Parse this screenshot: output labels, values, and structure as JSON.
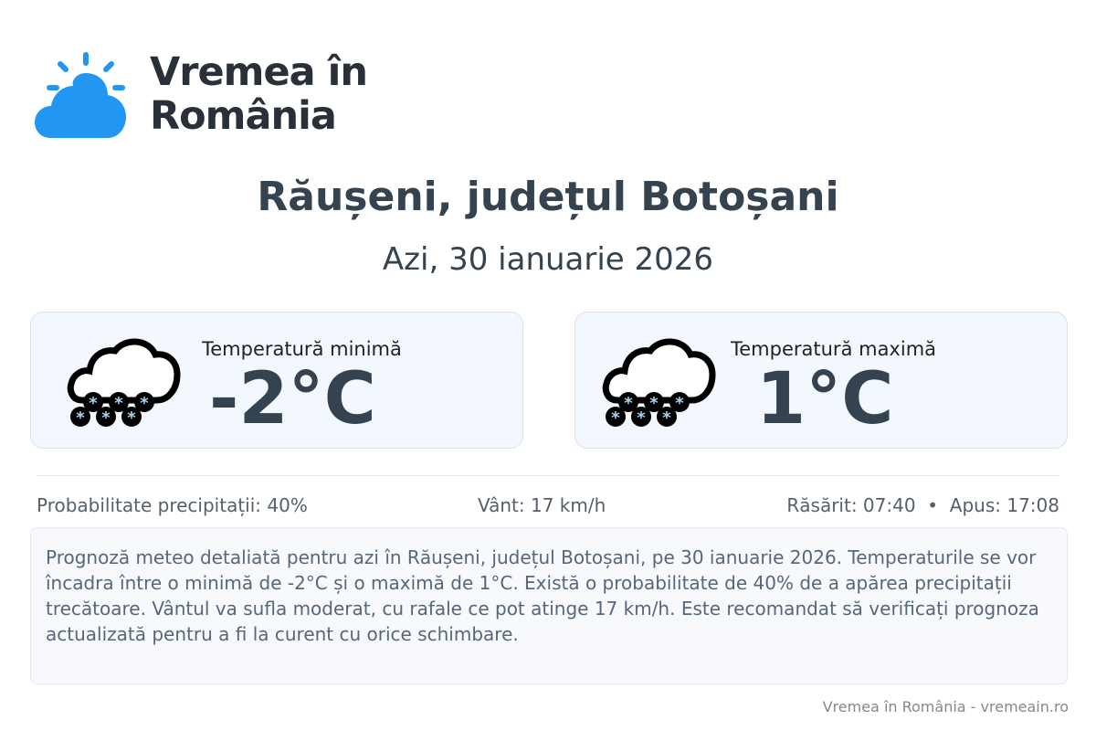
{
  "brand": {
    "name_line1": "Vremea în",
    "name_line2": "România",
    "logo_color": "#2196f3"
  },
  "header": {
    "title": "Răușeni, județul Botoșani",
    "date": "Azi, 30 ianuarie 2026"
  },
  "cards": [
    {
      "label": "Temperatură minimă",
      "value": "-2°C",
      "icon": "snow-cloud-icon"
    },
    {
      "label": "Temperatură maximă",
      "value": "1°C",
      "icon": "snow-cloud-icon"
    }
  ],
  "stats": {
    "precipitation": "Probabilitate precipitații: 40%",
    "wind": "Vânt: 17 km/h",
    "sun": "Răsărit: 07:40  •  Apus: 17:08"
  },
  "description": "Prognoză meteo detaliată pentru azi în Răușeni, județul Botoșani, pe 30 ianuarie 2026. Temperaturile se vor încadra între o minimă de -2°C și o maximă de 1°C. Există o probabilitate de 40% de a apărea precipitații trecătoare. Vântul va sufla moderat, cu rafale ce pot atinge 17 km/h. Este recomandat să verificați prognoza actualizată pentru a fi la curent cu orice schimbare.",
  "footer": "Vremea în România - vremeain.ro"
}
